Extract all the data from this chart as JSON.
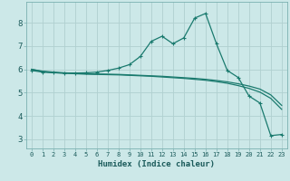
{
  "xlabel": "Humidex (Indice chaleur)",
  "background_color": "#cce8e8",
  "grid_color": "#b0d0d0",
  "line_color": "#1a7a6e",
  "x_values": [
    0,
    1,
    2,
    3,
    4,
    5,
    6,
    7,
    8,
    9,
    10,
    11,
    12,
    13,
    14,
    15,
    16,
    17,
    18,
    19,
    20,
    21,
    22,
    23
  ],
  "series1": [
    5.95,
    5.88,
    5.85,
    5.84,
    5.84,
    5.85,
    5.88,
    5.95,
    6.05,
    6.2,
    6.55,
    7.2,
    7.42,
    7.1,
    7.35,
    8.2,
    8.4,
    7.1,
    5.95,
    5.65,
    4.85,
    4.55,
    3.15,
    3.2
  ],
  "series2": [
    6.0,
    5.92,
    5.88,
    5.85,
    5.83,
    5.81,
    5.8,
    5.79,
    5.78,
    5.76,
    5.74,
    5.72,
    5.7,
    5.67,
    5.64,
    5.61,
    5.57,
    5.52,
    5.46,
    5.38,
    5.28,
    5.15,
    4.9,
    4.45
  ],
  "series3": [
    6.0,
    5.9,
    5.86,
    5.83,
    5.81,
    5.79,
    5.78,
    5.77,
    5.76,
    5.74,
    5.72,
    5.7,
    5.67,
    5.64,
    5.61,
    5.57,
    5.53,
    5.47,
    5.4,
    5.3,
    5.18,
    5.02,
    4.75,
    4.28
  ],
  "ylim": [
    2.6,
    8.9
  ],
  "yticks": [
    3,
    4,
    5,
    6,
    7,
    8
  ],
  "xlim": [
    -0.5,
    23.5
  ],
  "xticks": [
    0,
    1,
    2,
    3,
    4,
    5,
    6,
    7,
    8,
    9,
    10,
    11,
    12,
    13,
    14,
    15,
    16,
    17,
    18,
    19,
    20,
    21,
    22,
    23
  ]
}
